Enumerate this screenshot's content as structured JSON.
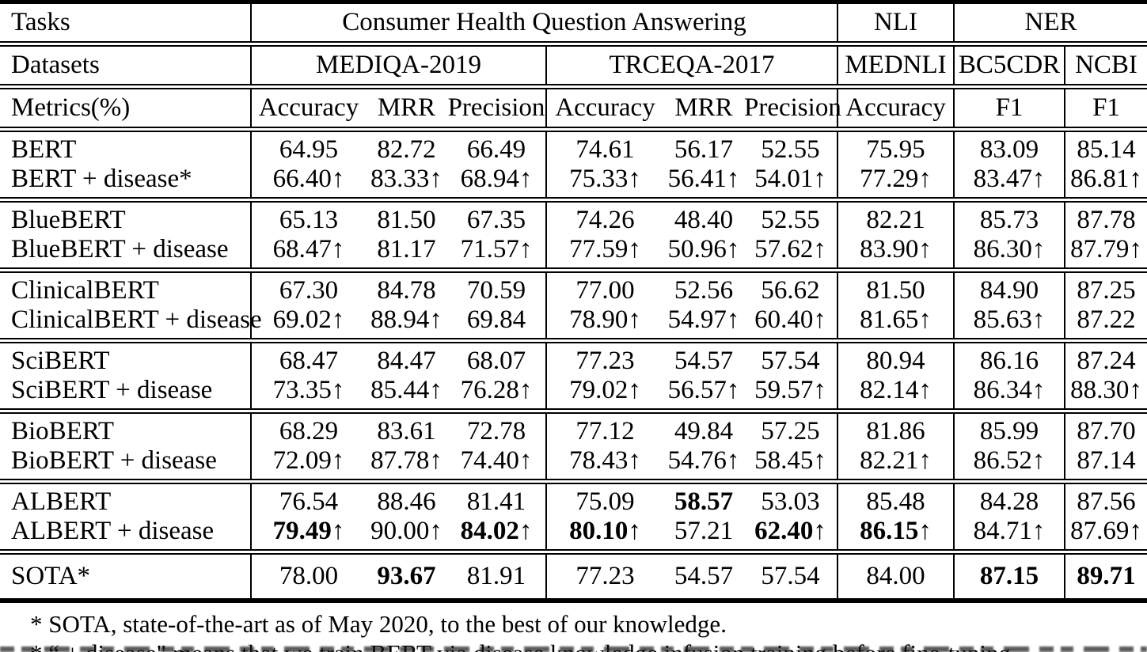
{
  "colors": {
    "background": "#ffffff",
    "text": "#000000",
    "rule": "#000000"
  },
  "table": {
    "arrow_char": "↑",
    "header": {
      "tasks_label": "Tasks",
      "task_groups": [
        {
          "text": "Consumer Health Question Answering",
          "colspan": 6
        },
        {
          "text": "NLI",
          "colspan": 1
        },
        {
          "text": "NER",
          "colspan": 2
        }
      ],
      "datasets_label": "Datasets",
      "datasets": [
        {
          "text": "MEDIQA-2019",
          "colspan": 3
        },
        {
          "text": "TRCEQA-2017",
          "colspan": 3
        },
        {
          "text": "MEDNLI",
          "colspan": 1
        },
        {
          "text": "BC5CDR",
          "colspan": 1
        },
        {
          "text": "NCBI",
          "colspan": 1
        }
      ],
      "metrics_label": "Metrics(%)",
      "metrics": [
        "Accuracy",
        "MRR",
        "Precision",
        "Accuracy",
        "MRR",
        "Precision",
        "Accuracy",
        "F1",
        "F1"
      ]
    },
    "groups": [
      {
        "rows": [
          {
            "label": "BERT",
            "values": [
              "64.95",
              "82.72",
              "66.49",
              "74.61",
              "56.17",
              "52.55",
              "75.95",
              "83.09",
              "85.14"
            ],
            "arrows": [
              0,
              0,
              0,
              0,
              0,
              0,
              0,
              0,
              0
            ],
            "bold": [
              0,
              0,
              0,
              0,
              0,
              0,
              0,
              0,
              0
            ]
          },
          {
            "label": "BERT + disease*",
            "values": [
              "66.40",
              "83.33",
              "68.94",
              "75.33",
              "56.41",
              "54.01",
              "77.29",
              "83.47",
              "86.81"
            ],
            "arrows": [
              1,
              1,
              1,
              1,
              1,
              1,
              1,
              1,
              1
            ],
            "bold": [
              0,
              0,
              0,
              0,
              0,
              0,
              0,
              0,
              0
            ]
          }
        ]
      },
      {
        "rows": [
          {
            "label": "BlueBERT",
            "values": [
              "65.13",
              "81.50",
              "67.35",
              "74.26",
              "48.40",
              "52.55",
              "82.21",
              "85.73",
              "87.78"
            ],
            "arrows": [
              0,
              0,
              0,
              0,
              0,
              0,
              0,
              0,
              0
            ],
            "bold": [
              0,
              0,
              0,
              0,
              0,
              0,
              0,
              0,
              0
            ]
          },
          {
            "label": "BlueBERT + disease",
            "values": [
              "68.47",
              "81.17",
              "71.57",
              "77.59",
              "50.96",
              "57.62",
              "83.90",
              "86.30",
              "87.79"
            ],
            "arrows": [
              1,
              0,
              1,
              1,
              1,
              1,
              1,
              1,
              1
            ],
            "bold": [
              0,
              0,
              0,
              0,
              0,
              0,
              0,
              0,
              0
            ]
          }
        ]
      },
      {
        "rows": [
          {
            "label": "ClinicalBERT",
            "values": [
              "67.30",
              "84.78",
              "70.59",
              "77.00",
              "52.56",
              "56.62",
              "81.50",
              "84.90",
              "87.25"
            ],
            "arrows": [
              0,
              0,
              0,
              0,
              0,
              0,
              0,
              0,
              0
            ],
            "bold": [
              0,
              0,
              0,
              0,
              0,
              0,
              0,
              0,
              0
            ]
          },
          {
            "label": "ClinicalBERT + disease",
            "values": [
              "69.02",
              "88.94",
              "69.84",
              "78.90",
              "54.97",
              "60.40",
              "81.65",
              "85.63",
              "87.22"
            ],
            "arrows": [
              1,
              1,
              0,
              1,
              1,
              1,
              1,
              1,
              0
            ],
            "bold": [
              0,
              0,
              0,
              0,
              0,
              0,
              0,
              0,
              0
            ]
          }
        ]
      },
      {
        "rows": [
          {
            "label": "SciBERT",
            "values": [
              "68.47",
              "84.47",
              "68.07",
              "77.23",
              "54.57",
              "57.54",
              "80.94",
              "86.16",
              "87.24"
            ],
            "arrows": [
              0,
              0,
              0,
              0,
              0,
              0,
              0,
              0,
              0
            ],
            "bold": [
              0,
              0,
              0,
              0,
              0,
              0,
              0,
              0,
              0
            ]
          },
          {
            "label": "SciBERT + disease",
            "values": [
              "73.35",
              "85.44",
              "76.28",
              "79.02",
              "56.57",
              "59.57",
              "82.14",
              "86.34",
              "88.30"
            ],
            "arrows": [
              1,
              1,
              1,
              1,
              1,
              1,
              1,
              1,
              1
            ],
            "bold": [
              0,
              0,
              0,
              0,
              0,
              0,
              0,
              0,
              0
            ]
          }
        ]
      },
      {
        "rows": [
          {
            "label": "BioBERT",
            "values": [
              "68.29",
              "83.61",
              "72.78",
              "77.12",
              "49.84",
              "57.25",
              "81.86",
              "85.99",
              "87.70"
            ],
            "arrows": [
              0,
              0,
              0,
              0,
              0,
              0,
              0,
              0,
              0
            ],
            "bold": [
              0,
              0,
              0,
              0,
              0,
              0,
              0,
              0,
              0
            ]
          },
          {
            "label": "BioBERT + disease",
            "values": [
              "72.09",
              "87.78",
              "74.40",
              "78.43",
              "54.76",
              "58.45",
              "82.21",
              "86.52",
              "87.14"
            ],
            "arrows": [
              1,
              1,
              1,
              1,
              1,
              1,
              1,
              1,
              0
            ],
            "bold": [
              0,
              0,
              0,
              0,
              0,
              0,
              0,
              0,
              0
            ]
          }
        ]
      },
      {
        "rows": [
          {
            "label": "ALBERT",
            "values": [
              "76.54",
              "88.46",
              "81.41",
              "75.09",
              "58.57",
              "53.03",
              "85.48",
              "84.28",
              "87.56"
            ],
            "arrows": [
              0,
              0,
              0,
              0,
              0,
              0,
              0,
              0,
              0
            ],
            "bold": [
              0,
              0,
              0,
              0,
              1,
              0,
              0,
              0,
              0
            ]
          },
          {
            "label": "ALBERT + disease",
            "values": [
              "79.49",
              "90.00",
              "84.02",
              "80.10",
              "57.21",
              "62.40",
              "86.15",
              "84.71",
              "87.69"
            ],
            "arrows": [
              1,
              1,
              1,
              1,
              0,
              1,
              1,
              1,
              1
            ],
            "bold": [
              1,
              0,
              1,
              1,
              0,
              1,
              1,
              0,
              0
            ]
          }
        ]
      }
    ],
    "sota_row": {
      "label": "SOTA*",
      "values": [
        "78.00",
        "93.67",
        "81.91",
        "77.23",
        "54.57",
        "57.54",
        "84.00",
        "87.15",
        "89.71"
      ],
      "arrows": [
        0,
        0,
        0,
        0,
        0,
        0,
        0,
        0,
        0
      ],
      "bold": [
        0,
        1,
        0,
        0,
        0,
        0,
        0,
        1,
        1
      ]
    }
  },
  "footnotes": [
    "* SOTA, state-of-the-art as of May 2020, to the best of our knowledge.",
    "* “ + disease\" means that we train BERT via disease knowledge infusion training before fine-tuning."
  ]
}
